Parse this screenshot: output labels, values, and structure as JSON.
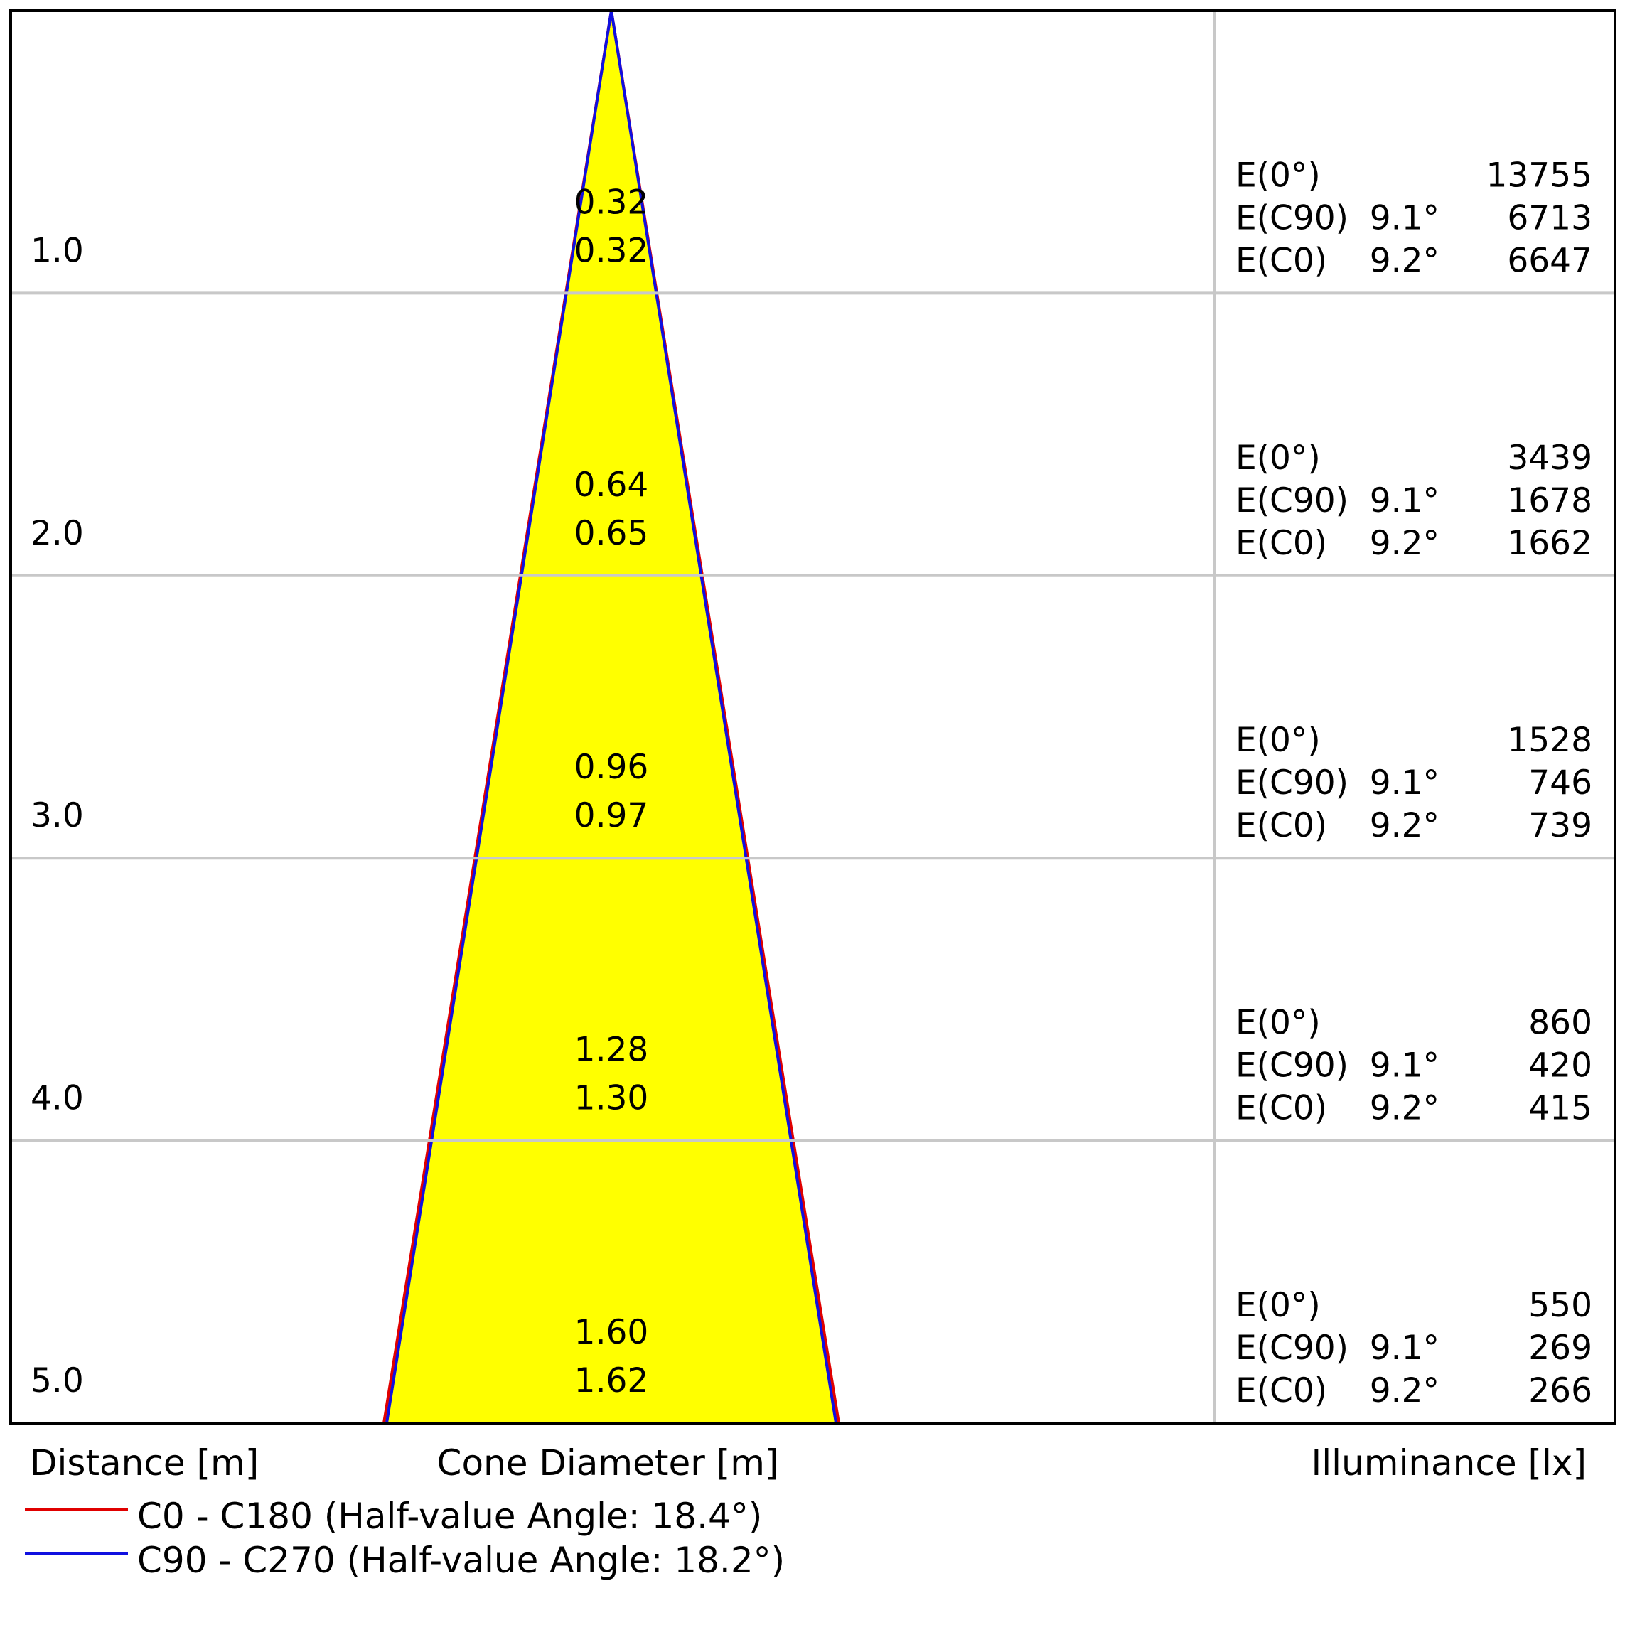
{
  "chart_data": {
    "type": "cone-diagram",
    "distance_label": "Distance [m]",
    "diameter_label": "Cone Diameter [m]",
    "illuminance_label": "Illuminance [lx]",
    "rows": [
      {
        "distance": "1.0",
        "diam_c90": "0.32",
        "diam_c0": "0.32",
        "e0_label": "E(0°)",
        "e0": "13755",
        "ec90_label": "E(C90)",
        "ec90_angle": "9.1°",
        "ec90": "6713",
        "ec0_label": "E(C0)",
        "ec0_angle": "9.2°",
        "ec0": "6647"
      },
      {
        "distance": "2.0",
        "diam_c90": "0.64",
        "diam_c0": "0.65",
        "e0_label": "E(0°)",
        "e0": "3439",
        "ec90_label": "E(C90)",
        "ec90_angle": "9.1°",
        "ec90": "1678",
        "ec0_label": "E(C0)",
        "ec0_angle": "9.2°",
        "ec0": "1662"
      },
      {
        "distance": "3.0",
        "diam_c90": "0.96",
        "diam_c0": "0.97",
        "e0_label": "E(0°)",
        "e0": "1528",
        "ec90_label": "E(C90)",
        "ec90_angle": "9.1°",
        "ec90": "746",
        "ec0_label": "E(C0)",
        "ec0_angle": "9.2°",
        "ec0": "739"
      },
      {
        "distance": "4.0",
        "diam_c90": "1.28",
        "diam_c0": "1.30",
        "e0_label": "E(0°)",
        "e0": "860",
        "ec90_label": "E(C90)",
        "ec90_angle": "9.1°",
        "ec90": "420",
        "ec0_label": "E(C0)",
        "ec0_angle": "9.2°",
        "ec0": "415"
      },
      {
        "distance": "5.0",
        "diam_c90": "1.60",
        "diam_c0": "1.62",
        "e0_label": "E(0°)",
        "e0": "550",
        "ec90_label": "E(C90)",
        "ec90_angle": "9.1°",
        "ec90": "269",
        "ec0_label": "E(C0)",
        "ec0_angle": "9.2°",
        "ec0": "266"
      }
    ],
    "cone": {
      "max_distance": 5.0,
      "c0_diameter_at_max": 1.62,
      "c90_diameter_at_max": 1.6,
      "fill_color": "#ffff00"
    },
    "legend": [
      {
        "name": "C0 - C180 (Half-value Angle: 18.4°)",
        "color": "#e00000"
      },
      {
        "name": "C90 - C270 (Half-value Angle: 18.2°)",
        "color": "#1010e0"
      }
    ],
    "grid": true
  }
}
